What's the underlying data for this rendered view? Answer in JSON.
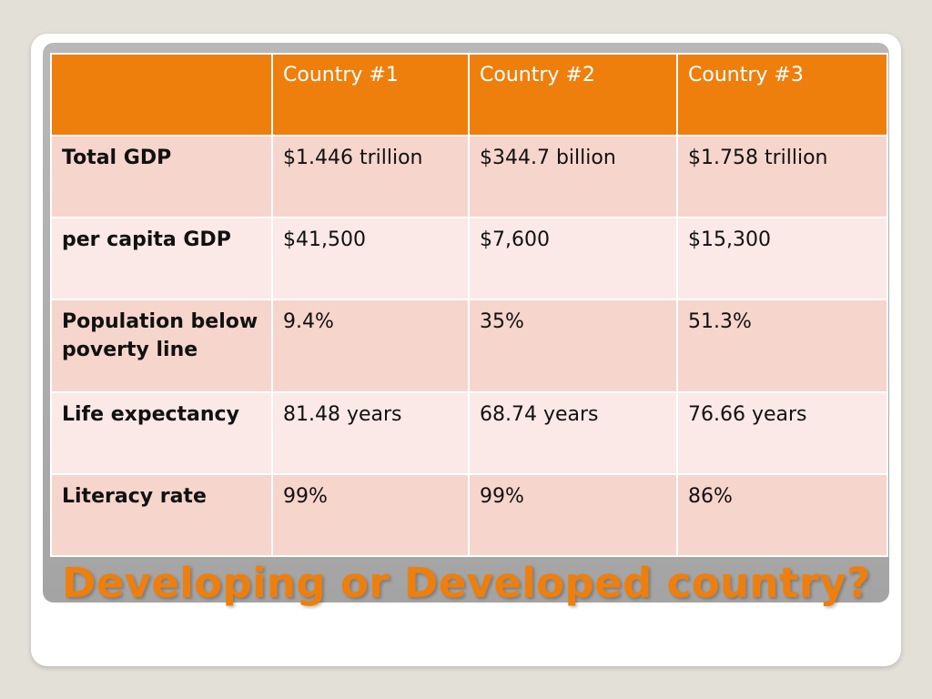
{
  "table": {
    "headers": [
      "",
      "Country #1",
      "Country #2",
      "Country #3"
    ],
    "rows": [
      {
        "label": "Total GDP",
        "values": [
          "$1.446 trillion",
          "$344.7 billion",
          "$1.758 trillion"
        ]
      },
      {
        "label": "per capita GDP",
        "values": [
          "$41,500",
          "$7,600",
          "$15,300"
        ]
      },
      {
        "label": "Population below poverty line",
        "values": [
          "9.4%",
          "35%",
          "51.3%"
        ]
      },
      {
        "label": "Life expectancy",
        "values": [
          "81.48 years",
          "68.74 years",
          "76.66 years"
        ]
      },
      {
        "label": "Literacy rate",
        "values": [
          "99%",
          "99%",
          "86%"
        ]
      }
    ]
  },
  "slide": {
    "title": "Developing or Developed country?"
  },
  "colors": {
    "accent": "#ee7f0d",
    "row_dark": "#f6d5cc",
    "row_light": "#fae9e6"
  }
}
